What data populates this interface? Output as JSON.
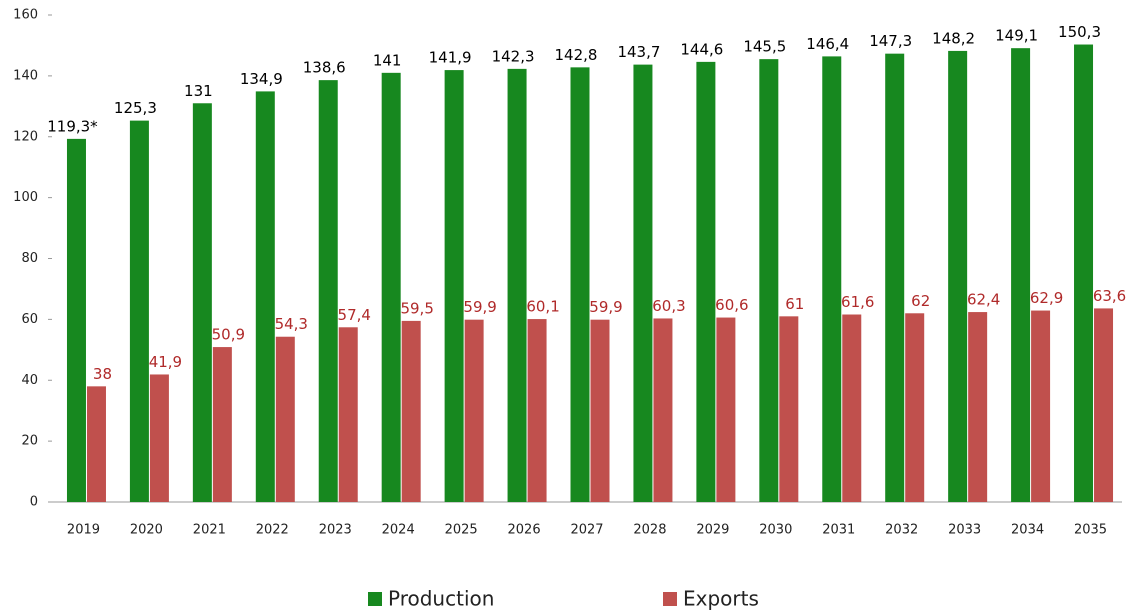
{
  "chart_data": {
    "type": "bar",
    "categories": [
      "2019",
      "2020",
      "2021",
      "2022",
      "2023",
      "2024",
      "2025",
      "2026",
      "2027",
      "2028",
      "2029",
      "2030",
      "2031",
      "2032",
      "2033",
      "2034",
      "2035"
    ],
    "series": [
      {
        "name": "Production",
        "color": "#17881f",
        "label_color": "#000000",
        "values": [
          119.3,
          125.3,
          131,
          134.9,
          138.6,
          141,
          141.9,
          142.3,
          142.8,
          143.7,
          144.6,
          145.5,
          146.4,
          147.3,
          148.2,
          149.1,
          150.3
        ],
        "value_labels": [
          "119,3*",
          "125,3",
          "131",
          "134,9",
          "138,6",
          "141",
          "141,9",
          "142,3",
          "142,8",
          "143,7",
          "144,6",
          "145,5",
          "146,4",
          "147,3",
          "148,2",
          "149,1",
          "150,3"
        ]
      },
      {
        "name": "Exports",
        "color": "#c0504d",
        "label_color": "#b02a2a",
        "values": [
          38,
          41.9,
          50.9,
          54.3,
          57.4,
          59.5,
          59.9,
          60.1,
          59.9,
          60.3,
          60.6,
          61,
          61.6,
          62,
          62.4,
          62.9,
          63.6
        ],
        "value_labels": [
          "38",
          "41,9",
          "50,9",
          "54,3",
          "57,4",
          "59,5",
          "59,9",
          "60,1",
          "59,9",
          "60,3",
          "60,6",
          "61",
          "61,6",
          "62",
          "62,4",
          "62,9",
          "63,6"
        ]
      }
    ],
    "ylim": [
      0,
      160
    ],
    "yticks": [
      0,
      20,
      40,
      60,
      80,
      100,
      120,
      140,
      160
    ],
    "grid": false,
    "legend": "bottom"
  }
}
